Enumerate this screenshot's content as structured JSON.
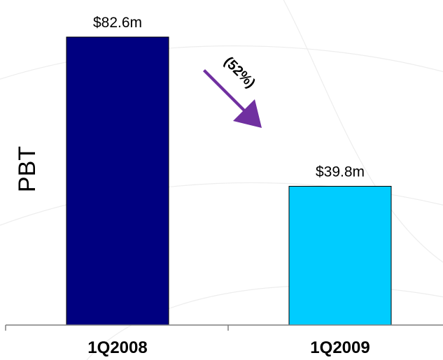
{
  "chart_data": {
    "type": "bar",
    "categories": [
      "1Q2008",
      "1Q2009"
    ],
    "values": [
      82.6,
      39.8
    ],
    "value_labels": [
      "$82.6m",
      "$39.8m"
    ],
    "ylabel": "PBT",
    "ylim": [
      0,
      85
    ],
    "grid": false,
    "legend": "none",
    "annotation": "(52%)"
  },
  "colors": {
    "bar_1": "#000080",
    "bar_2": "#00ccff",
    "arrow": "#7030a0",
    "axis": "#7f7f7f"
  },
  "icons": {
    "change_arrow": "down-right-arrow-icon"
  }
}
